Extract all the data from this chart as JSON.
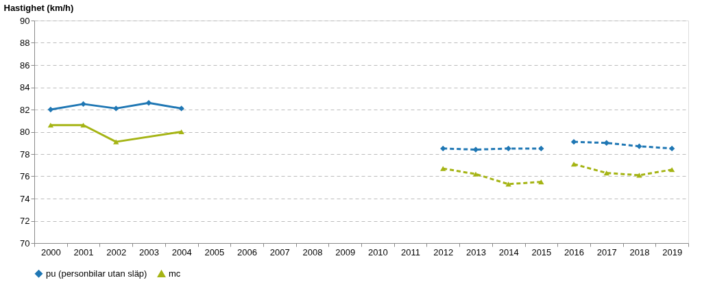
{
  "chart_data": {
    "type": "line",
    "ylabel": "Hastighet (km/h)",
    "categories": [
      "2000",
      "2001",
      "2002",
      "2003",
      "2004",
      "2005",
      "2006",
      "2007",
      "2008",
      "2009",
      "2010",
      "2011",
      "2012",
      "2013",
      "2014",
      "2015",
      "2016",
      "2017",
      "2018",
      "2019"
    ],
    "ylim": [
      70,
      90
    ],
    "yticks": [
      70,
      72,
      74,
      76,
      78,
      80,
      82,
      84,
      86,
      88,
      90
    ],
    "grid": "y",
    "legend": "bottom",
    "series": [
      {
        "name": "pu (personbilar utan släp)",
        "color": "#1f77b4",
        "marker": "diamond",
        "line_style": "solid",
        "values": [
          82.0,
          82.5,
          82.1,
          82.6,
          82.1,
          null,
          null,
          null,
          null,
          null,
          null,
          null,
          null,
          null,
          null,
          null,
          null,
          null,
          null,
          null
        ]
      },
      {
        "name": "mc",
        "color": "#a5b414",
        "marker": "triangle",
        "line_style": "solid",
        "values": [
          80.6,
          80.6,
          79.1,
          null,
          80.0,
          null,
          null,
          null,
          null,
          null,
          null,
          null,
          null,
          null,
          null,
          null,
          null,
          null,
          null,
          null
        ]
      },
      {
        "color": "#1f77b4",
        "marker": "diamond",
        "line_style": "dashed",
        "values": [
          null,
          null,
          null,
          null,
          null,
          null,
          null,
          null,
          null,
          null,
          null,
          null,
          78.5,
          78.4,
          78.5,
          78.5,
          null,
          null,
          null,
          null
        ]
      },
      {
        "color": "#1f77b4",
        "marker": "diamond",
        "line_style": "dashed",
        "values": [
          null,
          null,
          null,
          null,
          null,
          null,
          null,
          null,
          null,
          null,
          null,
          null,
          null,
          null,
          null,
          null,
          79.1,
          79.0,
          78.7,
          78.5
        ]
      },
      {
        "color": "#a5b414",
        "marker": "triangle",
        "line_style": "dashed",
        "values": [
          null,
          null,
          null,
          null,
          null,
          null,
          null,
          null,
          null,
          null,
          null,
          null,
          76.7,
          76.2,
          75.3,
          75.5,
          null,
          null,
          null,
          null
        ]
      },
      {
        "color": "#a5b414",
        "marker": "triangle",
        "line_style": "dashed",
        "values": [
          null,
          null,
          null,
          null,
          null,
          null,
          null,
          null,
          null,
          null,
          null,
          null,
          null,
          null,
          null,
          null,
          77.1,
          76.3,
          76.1,
          76.6
        ]
      }
    ]
  }
}
